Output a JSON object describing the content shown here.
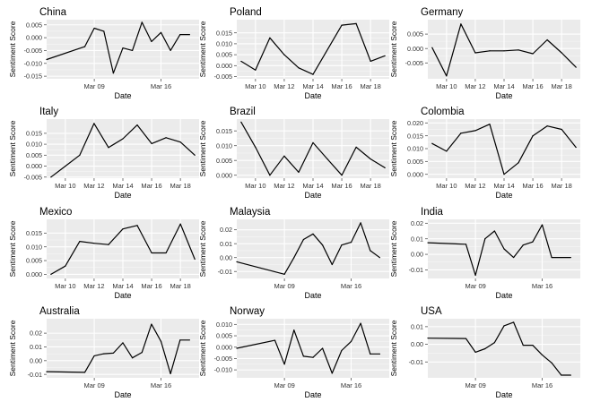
{
  "chart_data": [
    {
      "type": "line",
      "title": "China",
      "xlabel": "Date",
      "ylabel": "Sentiment Score",
      "x_ticks": [
        "Mar 09",
        "Mar 16"
      ],
      "xlim": [
        4,
        20
      ],
      "ylim": [
        -0.016,
        0.007
      ],
      "y_ticks": [
        0.005,
        0.0,
        -0.005,
        -0.01,
        -0.015
      ],
      "y_tick_labels": [
        "0.005",
        "0.000",
        "-0.005",
        "-0.010",
        "-0.015"
      ],
      "x": [
        4,
        8,
        9,
        10,
        11,
        12,
        13,
        14,
        15,
        16,
        17,
        18,
        19
      ],
      "y": [
        -0.0085,
        -0.0035,
        0.0037,
        0.0025,
        -0.0138,
        -0.004,
        -0.005,
        0.006,
        -0.0015,
        0.002,
        -0.005,
        0.0012,
        0.0012
      ]
    },
    {
      "type": "line",
      "title": "Poland",
      "xlabel": "Date",
      "ylabel": "Sentiment Score",
      "x_ticks": [
        "Mar 10",
        "Mar 12",
        "Mar 14",
        "Mar 16",
        "Mar 18"
      ],
      "xlim": [
        8.7,
        19.3
      ],
      "ylim": [
        -0.006,
        0.021
      ],
      "y_ticks": [
        0.015,
        0.01,
        0.005,
        0.0,
        -0.005
      ],
      "y_tick_labels": [
        "0.015",
        "0.010",
        "0.005",
        "0.000",
        "-0.005"
      ],
      "x": [
        9,
        10,
        11,
        12,
        13,
        14,
        16,
        17,
        18,
        19
      ],
      "y": [
        0.002,
        -0.002,
        0.0127,
        0.005,
        -0.001,
        -0.004,
        0.0185,
        0.0192,
        0.002,
        0.0045
      ]
    },
    {
      "type": "line",
      "title": "Germany",
      "xlabel": "Date",
      "ylabel": "Sentiment Score",
      "x_ticks": [
        "Mar 10",
        "Mar 12",
        "Mar 14",
        "Mar 16",
        "Mar 18"
      ],
      "xlim": [
        8.7,
        19.3
      ],
      "ylim": [
        -0.0105,
        0.01
      ],
      "y_ticks": [
        0.005,
        0.0,
        -0.005
      ],
      "y_tick_labels": [
        "0.005",
        "0.000",
        "-0.005"
      ],
      "x": [
        9,
        10,
        11,
        12,
        13,
        14,
        15,
        16,
        17,
        18,
        19
      ],
      "y": [
        0.0003,
        -0.0095,
        0.0085,
        -0.0015,
        -0.0008,
        -0.0008,
        -0.0005,
        -0.0018,
        0.003,
        -0.0015,
        -0.0065
      ]
    },
    {
      "type": "line",
      "title": "Italy",
      "xlabel": "Date",
      "ylabel": "Sentiment Score",
      "x_ticks": [
        "Mar 10",
        "Mar 12",
        "Mar 14",
        "Mar 16",
        "Mar 18"
      ],
      "xlim": [
        8.7,
        19.3
      ],
      "ylim": [
        -0.0055,
        0.0215
      ],
      "y_ticks": [
        0.015,
        0.01,
        0.005,
        0.0,
        -0.005
      ],
      "y_tick_labels": [
        "0.015",
        "0.010",
        "0.005",
        "0.000",
        "-0.005"
      ],
      "x": [
        9,
        10,
        11,
        12,
        13,
        14,
        15,
        16,
        17,
        18,
        19
      ],
      "y": [
        -0.005,
        0.0,
        0.005,
        0.0195,
        0.0085,
        0.0125,
        0.0188,
        0.0103,
        0.013,
        0.011,
        0.005
      ]
    },
    {
      "type": "line",
      "title": "Brazil",
      "xlabel": "Date",
      "ylabel": "Sentiment Score",
      "x_ticks": [
        "Mar 10",
        "Mar 12",
        "Mar 14",
        "Mar 16",
        "Mar 18"
      ],
      "xlim": [
        8.7,
        19.3
      ],
      "ylim": [
        -0.001,
        0.019
      ],
      "y_ticks": [
        0.015,
        0.01,
        0.005,
        0.0
      ],
      "y_tick_labels": [
        "0.015",
        "0.010",
        "0.005",
        "0.000"
      ],
      "x": [
        9,
        10,
        11,
        12,
        13,
        14,
        15,
        16,
        17,
        18,
        19
      ],
      "y": [
        0.018,
        0.0095,
        0.0,
        0.0065,
        0.001,
        0.011,
        0.0055,
        0.0,
        0.0095,
        0.0055,
        0.0025
      ]
    },
    {
      "type": "line",
      "title": "Colombia",
      "xlabel": "Date",
      "ylabel": "Sentiment Score",
      "x_ticks": [
        "Mar 10",
        "Mar 12",
        "Mar 14",
        "Mar 16",
        "Mar 18"
      ],
      "xlim": [
        8.7,
        19.3
      ],
      "ylim": [
        -0.0015,
        0.0215
      ],
      "y_ticks": [
        0.02,
        0.015,
        0.01,
        0.005,
        0.0
      ],
      "y_tick_labels": [
        "0.020",
        "0.015",
        "0.010",
        "0.005",
        "0.000"
      ],
      "x": [
        9,
        10,
        11,
        12,
        13,
        14,
        15,
        16,
        17,
        18,
        19
      ],
      "y": [
        0.012,
        0.009,
        0.016,
        0.017,
        0.0195,
        0.0,
        0.0045,
        0.015,
        0.0188,
        0.0175,
        0.0105
      ]
    },
    {
      "type": "line",
      "title": "Mexico",
      "xlabel": "Date",
      "ylabel": "Sentiment Score",
      "x_ticks": [
        "Mar 10",
        "Mar 12",
        "Mar 14",
        "Mar 16",
        "Mar 18"
      ],
      "xlim": [
        8.7,
        19.3
      ],
      "ylim": [
        -0.0015,
        0.02
      ],
      "y_ticks": [
        0.015,
        0.01,
        0.005,
        0.0
      ],
      "y_tick_labels": [
        "0.015",
        "0.010",
        "0.005",
        "0.000"
      ],
      "x": [
        9,
        10,
        11,
        12,
        13,
        14,
        15,
        16,
        17,
        18,
        19
      ],
      "y": [
        0.0,
        0.003,
        0.012,
        0.0113,
        0.0108,
        0.0165,
        0.0178,
        0.0078,
        0.0078,
        0.0183,
        0.0055
      ]
    },
    {
      "type": "line",
      "title": "Malaysia",
      "xlabel": "Date",
      "ylabel": "Sentiment Score",
      "x_ticks": [
        "Mar 09",
        "Mar 16"
      ],
      "xlim": [
        4,
        20
      ],
      "ylim": [
        -0.015,
        0.0275
      ],
      "y_ticks": [
        0.02,
        0.01,
        0.0,
        -0.01
      ],
      "y_tick_labels": [
        "0.02",
        "0.01",
        "0.00",
        "-0.01"
      ],
      "x": [
        4,
        9,
        10,
        11,
        12,
        13,
        14,
        15,
        16,
        17,
        18,
        19
      ],
      "y": [
        -0.003,
        -0.012,
        0.0,
        0.013,
        0.017,
        0.009,
        -0.005,
        0.009,
        0.011,
        0.025,
        0.005,
        0.0
      ]
    },
    {
      "type": "line",
      "title": "India",
      "xlabel": "Date",
      "ylabel": "Sentiment Score",
      "x_ticks": [
        "Mar 09",
        "Mar 16"
      ],
      "xlim": [
        4,
        20
      ],
      "ylim": [
        -0.0155,
        0.0225
      ],
      "y_ticks": [
        0.02,
        0.01,
        0.0,
        -0.01
      ],
      "y_tick_labels": [
        "0.02",
        "0.01",
        "0.00",
        "-0.01"
      ],
      "x": [
        4,
        8,
        9,
        10,
        11,
        12,
        13,
        14,
        15,
        16,
        17,
        18,
        19
      ],
      "y": [
        0.0075,
        0.0065,
        -0.0135,
        0.01,
        0.015,
        0.0035,
        -0.002,
        0.006,
        0.008,
        0.019,
        -0.002,
        -0.002,
        -0.002
      ]
    },
    {
      "type": "line",
      "title": "Australia",
      "xlabel": "Date",
      "ylabel": "Sentiment Score",
      "x_ticks": [
        "Mar 09",
        "Mar 16"
      ],
      "xlim": [
        4,
        20
      ],
      "ylim": [
        -0.0125,
        0.0305
      ],
      "y_ticks": [
        0.02,
        0.01,
        0.0,
        -0.01
      ],
      "y_tick_labels": [
        "0.02",
        "0.01",
        "0.00",
        "-0.01"
      ],
      "x": [
        4,
        8,
        9,
        10,
        11,
        12,
        13,
        14,
        15,
        16,
        17,
        18,
        19
      ],
      "y": [
        -0.008,
        -0.0085,
        0.0035,
        0.005,
        0.0055,
        0.013,
        0.002,
        0.006,
        0.0265,
        0.014,
        -0.0095,
        0.015,
        0.015
      ]
    },
    {
      "type": "line",
      "title": "Norway",
      "xlabel": "Date",
      "ylabel": "Sentiment Score",
      "x_ticks": [
        "Mar 09",
        "Mar 16"
      ],
      "xlim": [
        4,
        20
      ],
      "ylim": [
        -0.0135,
        0.0125
      ],
      "y_ticks": [
        0.01,
        0.005,
        0.0,
        -0.005,
        -0.01
      ],
      "y_tick_labels": [
        "0.010",
        "0.005",
        "0.000",
        "-0.005",
        "-0.010"
      ],
      "x": [
        4,
        8,
        9,
        10,
        11,
        12,
        13,
        14,
        15,
        16,
        17,
        18,
        19
      ],
      "y": [
        -0.0005,
        0.003,
        -0.0075,
        0.0075,
        -0.004,
        -0.0045,
        -0.0005,
        -0.0115,
        -0.0015,
        0.0025,
        0.0105,
        -0.003,
        -0.003
      ]
    },
    {
      "type": "line",
      "title": "USA",
      "xlabel": "Date",
      "ylabel": "Sentiment Score",
      "x_ticks": [
        "Mar 09",
        "Mar 16"
      ],
      "xlim": [
        4,
        20
      ],
      "ylim": [
        -0.019,
        0.0145
      ],
      "y_ticks": [
        0.01,
        0.0,
        -0.01
      ],
      "y_tick_labels": [
        "0.01",
        "0.00",
        "-0.01"
      ],
      "x": [
        4,
        8,
        9,
        10,
        11,
        12,
        13,
        14,
        15,
        16,
        17,
        18,
        19
      ],
      "y": [
        0.0035,
        0.0033,
        -0.0045,
        -0.0025,
        0.001,
        0.0105,
        0.0125,
        -0.0005,
        -0.0005,
        -0.006,
        -0.0105,
        -0.0175,
        -0.0175
      ]
    }
  ],
  "colors": {
    "panel_bg": "#ebebeb",
    "grid": "#ffffff",
    "line": "#000000",
    "text": "#333333",
    "title": "#000000"
  }
}
